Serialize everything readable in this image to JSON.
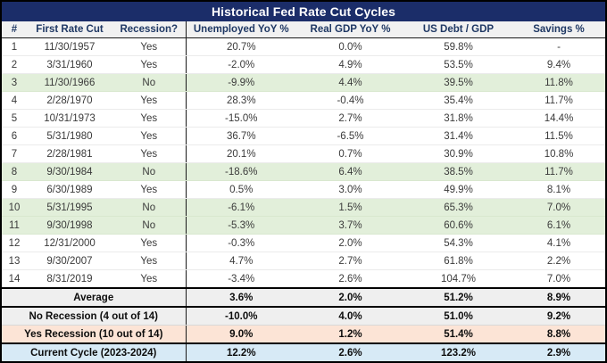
{
  "title_bar": {
    "label": "Historical Fed Rate Cut Cycles"
  },
  "chart_data": {
    "type": "table",
    "title": "Historical Fed Rate Cut Cycles",
    "columns": [
      "#",
      "First Rate Cut",
      "Recession?",
      "Unemployed YoY %",
      "Real GDP YoY %",
      "US Debt / GDP",
      "Savings %"
    ],
    "rows": [
      [
        "1",
        "11/30/1957",
        "Yes",
        "20.7%",
        "0.0%",
        "59.8%",
        "-"
      ],
      [
        "2",
        "3/31/1960",
        "Yes",
        "-2.0%",
        "4.9%",
        "53.5%",
        "9.4%"
      ],
      [
        "3",
        "11/30/1966",
        "No",
        "-9.9%",
        "4.4%",
        "39.5%",
        "11.8%"
      ],
      [
        "4",
        "2/28/1970",
        "Yes",
        "28.3%",
        "-0.4%",
        "35.4%",
        "11.7%"
      ],
      [
        "5",
        "10/31/1973",
        "Yes",
        "-15.0%",
        "2.7%",
        "31.8%",
        "14.4%"
      ],
      [
        "6",
        "5/31/1980",
        "Yes",
        "36.7%",
        "-6.5%",
        "31.4%",
        "11.5%"
      ],
      [
        "7",
        "2/28/1981",
        "Yes",
        "20.1%",
        "0.7%",
        "30.9%",
        "10.8%"
      ],
      [
        "8",
        "9/30/1984",
        "No",
        "-18.6%",
        "6.4%",
        "38.5%",
        "11.7%"
      ],
      [
        "9",
        "6/30/1989",
        "Yes",
        "0.5%",
        "3.0%",
        "49.9%",
        "8.1%"
      ],
      [
        "10",
        "5/31/1995",
        "No",
        "-6.1%",
        "1.5%",
        "65.3%",
        "7.0%"
      ],
      [
        "11",
        "9/30/1998",
        "No",
        "-5.3%",
        "3.7%",
        "60.6%",
        "6.1%"
      ],
      [
        "12",
        "12/31/2000",
        "Yes",
        "-0.3%",
        "2.0%",
        "54.3%",
        "4.1%"
      ],
      [
        "13",
        "9/30/2007",
        "Yes",
        "4.7%",
        "2.7%",
        "61.8%",
        "2.2%"
      ],
      [
        "14",
        "8/31/2019",
        "Yes",
        "-3.4%",
        "2.6%",
        "104.7%",
        "7.0%"
      ]
    ],
    "summary_rows": [
      {
        "label": "Average",
        "values": [
          "3.6%",
          "2.0%",
          "51.2%",
          "8.9%"
        ],
        "variant": "average"
      },
      {
        "label": "No Recession (4 out of 14)",
        "values": [
          "-10.0%",
          "4.0%",
          "51.0%",
          "9.2%"
        ],
        "variant": "no-recession"
      },
      {
        "label": "Yes Recession (10 out of 14)",
        "values": [
          "9.0%",
          "1.2%",
          "51.4%",
          "8.8%"
        ],
        "variant": "yes-recession"
      },
      {
        "label": "Current Cycle (2023-2024)",
        "values": [
          "12.2%",
          "2.6%",
          "123.2%",
          "2.9%"
        ],
        "variant": "current-cycle"
      }
    ],
    "highlight_rule": "rows where Recession? = No are shaded green",
    "grid": "thin light horizontal separators; heavy border around summary blocks and after Recession? column"
  },
  "colors": {
    "title_bg": "#1b2d69",
    "title_text": "#ffffff",
    "header_bg": "#f1f1f1",
    "header_text": "#1f3864",
    "row_green": "#e2efda",
    "summary_gray": "#efefef",
    "summary_peach": "#fce4d6",
    "summary_blue": "#d7eaf6",
    "data_text": "#3a3a3a",
    "border_dark": "#000000"
  }
}
